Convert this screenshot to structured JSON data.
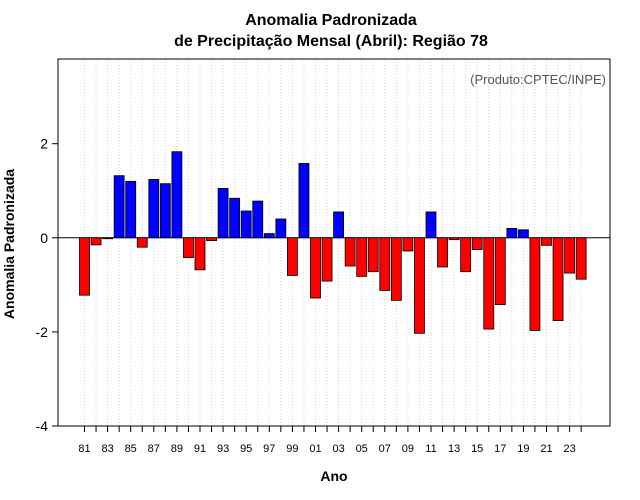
{
  "chart_data": {
    "type": "bar",
    "title_line1": "Anomalia Padronizada",
    "title_line2": "de Precipitação Mensal (Abril): Região 78",
    "xlabel": "Ano",
    "ylabel": "Anomalia Padronizada",
    "annotation": "(Produto:CPTEC/INPE)",
    "ylim": [
      -4,
      3.8
    ],
    "yticks": [
      -4,
      -2,
      0,
      2
    ],
    "positive_color": "#0000ff",
    "negative_color": "#ff0000",
    "grid": true,
    "categories": [
      "81",
      "82",
      "83",
      "84",
      "85",
      "86",
      "87",
      "88",
      "89",
      "90",
      "91",
      "92",
      "93",
      "94",
      "95",
      "96",
      "97",
      "98",
      "99",
      "00",
      "01",
      "02",
      "03",
      "04",
      "05",
      "06",
      "07",
      "08",
      "09",
      "10",
      "11",
      "12",
      "13",
      "14",
      "15",
      "16",
      "17",
      "18",
      "19",
      "20",
      "21",
      "22",
      "23",
      "24"
    ],
    "xtick_labels_shown": [
      "81",
      "83",
      "85",
      "87",
      "89",
      "91",
      "93",
      "95",
      "97",
      "99",
      "01",
      "03",
      "05",
      "07",
      "09",
      "11",
      "13",
      "15",
      "17",
      "19",
      "21",
      "23"
    ],
    "values": [
      -1.22,
      -0.15,
      -0.02,
      1.32,
      1.2,
      -0.2,
      1.24,
      1.15,
      1.83,
      -0.42,
      -0.68,
      -0.06,
      1.05,
      0.84,
      0.57,
      0.78,
      0.09,
      0.4,
      -0.8,
      1.58,
      -1.28,
      -0.92,
      0.55,
      -0.6,
      -0.82,
      -0.72,
      -1.12,
      -1.33,
      -0.28,
      -2.03,
      0.55,
      -0.62,
      -0.04,
      -0.72,
      -0.25,
      -1.94,
      -1.42,
      0.2,
      0.17,
      -1.97,
      -0.16,
      -1.76,
      -0.75,
      -0.88
    ]
  }
}
